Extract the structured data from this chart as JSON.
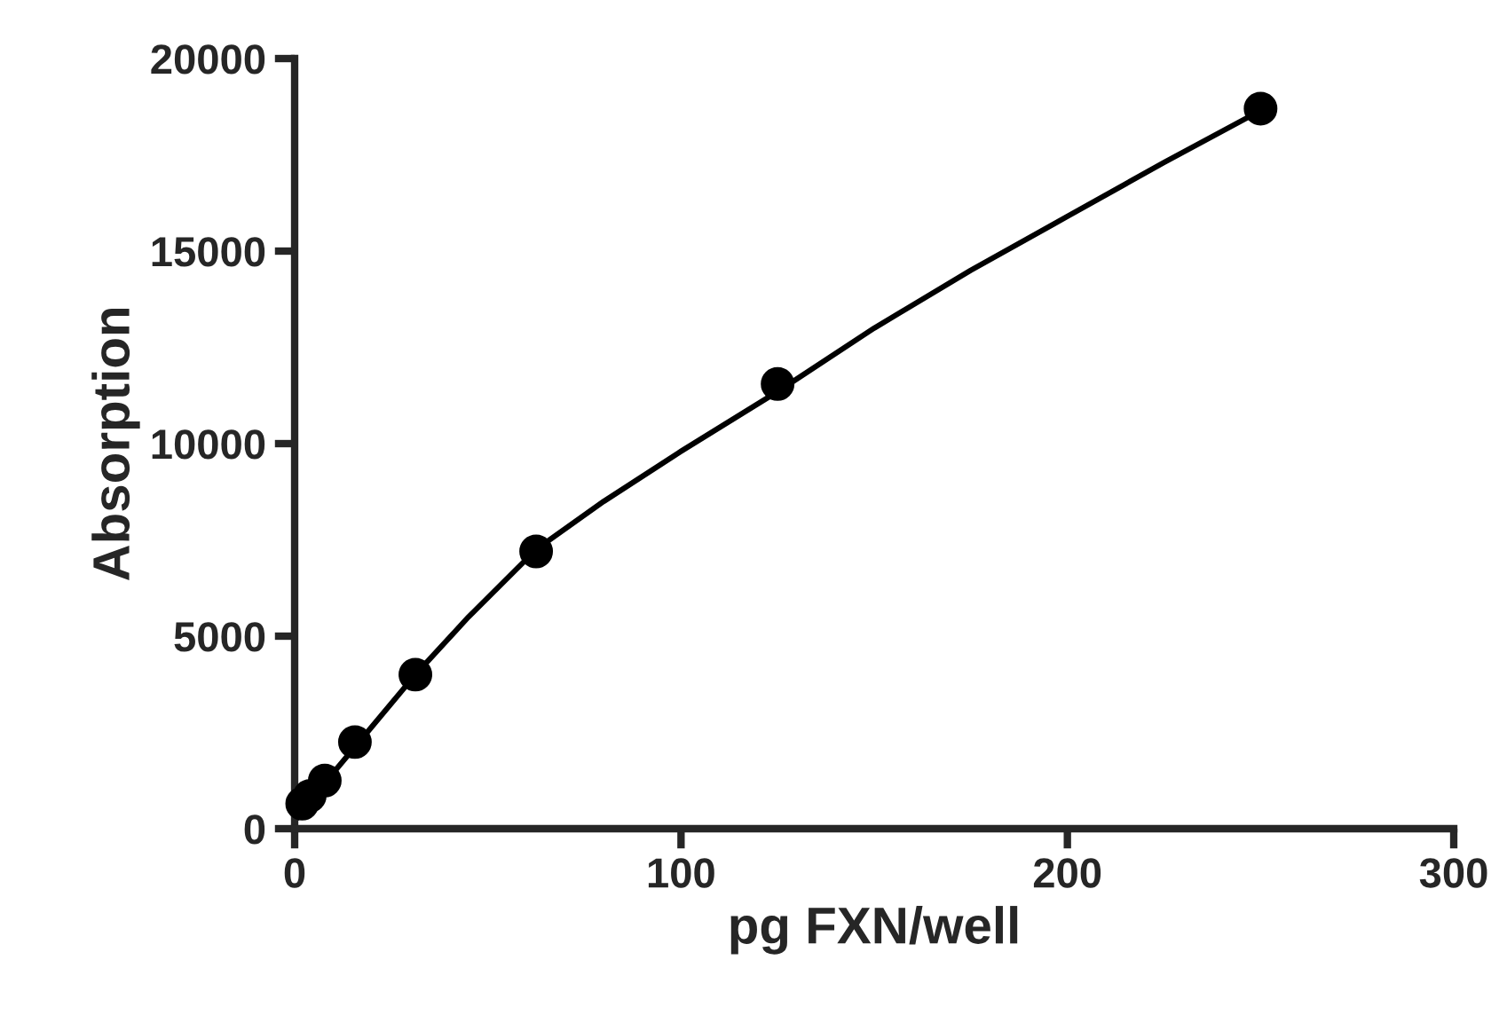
{
  "chart_data": {
    "type": "scatter",
    "xlabel": "pg FXN/well",
    "ylabel": "Absorption",
    "series": [
      {
        "color": "#000000",
        "marker": "circle",
        "x": [
          1.95,
          3.9,
          7.8,
          15.6,
          31.25,
          62.5,
          125,
          250
        ],
        "values": [
          650,
          850,
          1250,
          2250,
          4000,
          7200,
          11550,
          18700
        ]
      },
      {
        "type": "line",
        "color": "#000000",
        "marker": "none",
        "x": [
          0,
          5,
          10,
          20,
          31.25,
          45,
          62.5,
          80,
          100,
          125,
          150,
          175,
          200,
          225,
          250
        ],
        "values": [
          200,
          800,
          1450,
          2650,
          4000,
          5500,
          7250,
          8500,
          9800,
          11350,
          13000,
          14500,
          15900,
          17300,
          18650
        ]
      }
    ],
    "xlim": [
      0,
      300
    ],
    "xticks": [
      0,
      100,
      200,
      300
    ],
    "ylim": [
      0,
      20000
    ],
    "yticks": [
      0,
      5000,
      10000,
      15000,
      20000
    ],
    "grid": false,
    "legend": false
  }
}
